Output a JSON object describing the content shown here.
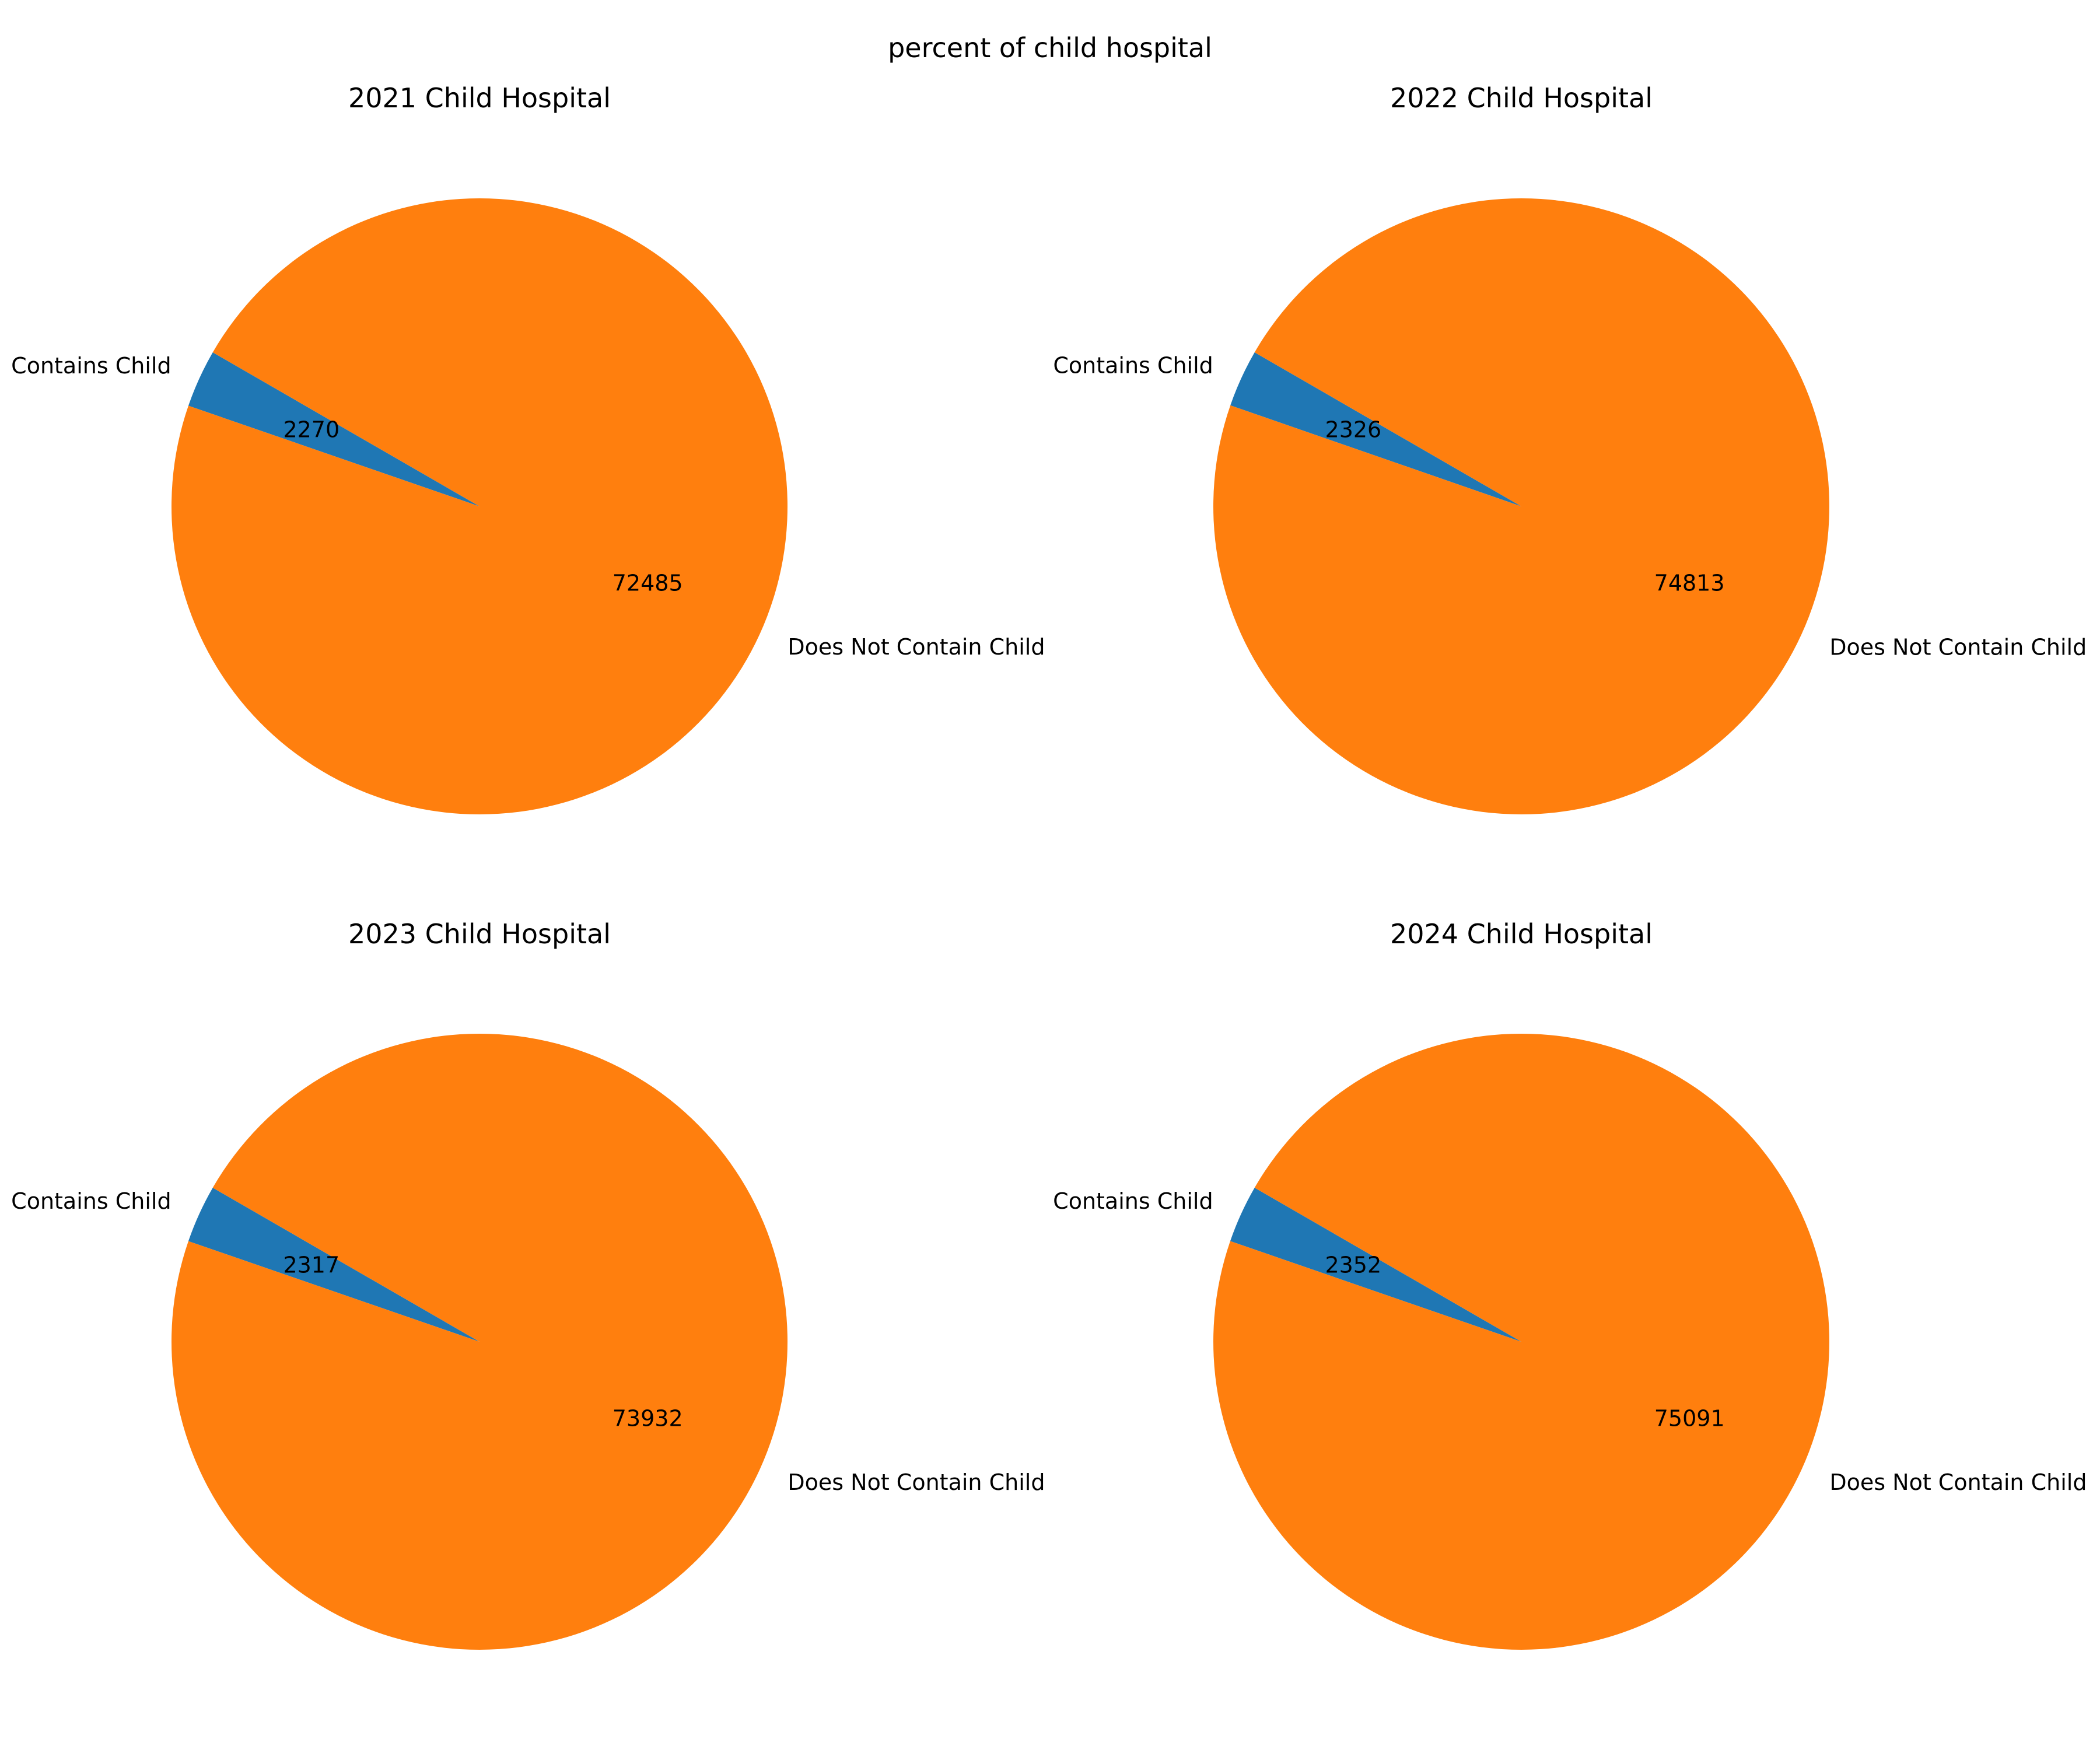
{
  "figure": {
    "suptitle": "percent of child hospital"
  },
  "chart_data": [
    {
      "type": "pie",
      "title": "2021 Child Hospital",
      "labels": [
        "Contains Child",
        "Does Not Contain Child"
      ],
      "values": [
        2270,
        72485
      ],
      "value_labels": [
        "2270",
        "72485"
      ],
      "colors": [
        "#1f77b4",
        "#ff7f0e"
      ],
      "start_angle_deg": 150
    },
    {
      "type": "pie",
      "title": "2022 Child Hospital",
      "labels": [
        "Contains Child",
        "Does Not Contain Child"
      ],
      "values": [
        2326,
        74813
      ],
      "value_labels": [
        "2326",
        "74813"
      ],
      "colors": [
        "#1f77b4",
        "#ff7f0e"
      ],
      "start_angle_deg": 150
    },
    {
      "type": "pie",
      "title": "2023 Child Hospital",
      "labels": [
        "Contains Child",
        "Does Not Contain Child"
      ],
      "values": [
        2317,
        73932
      ],
      "value_labels": [
        "2317",
        "73932"
      ],
      "colors": [
        "#1f77b4",
        "#ff7f0e"
      ],
      "start_angle_deg": 150
    },
    {
      "type": "pie",
      "title": "2024 Child Hospital",
      "labels": [
        "Contains Child",
        "Does Not Contain Child"
      ],
      "values": [
        2352,
        75091
      ],
      "value_labels": [
        "2352",
        "75091"
      ],
      "colors": [
        "#1f77b4",
        "#ff7f0e"
      ],
      "start_angle_deg": 150
    }
  ]
}
